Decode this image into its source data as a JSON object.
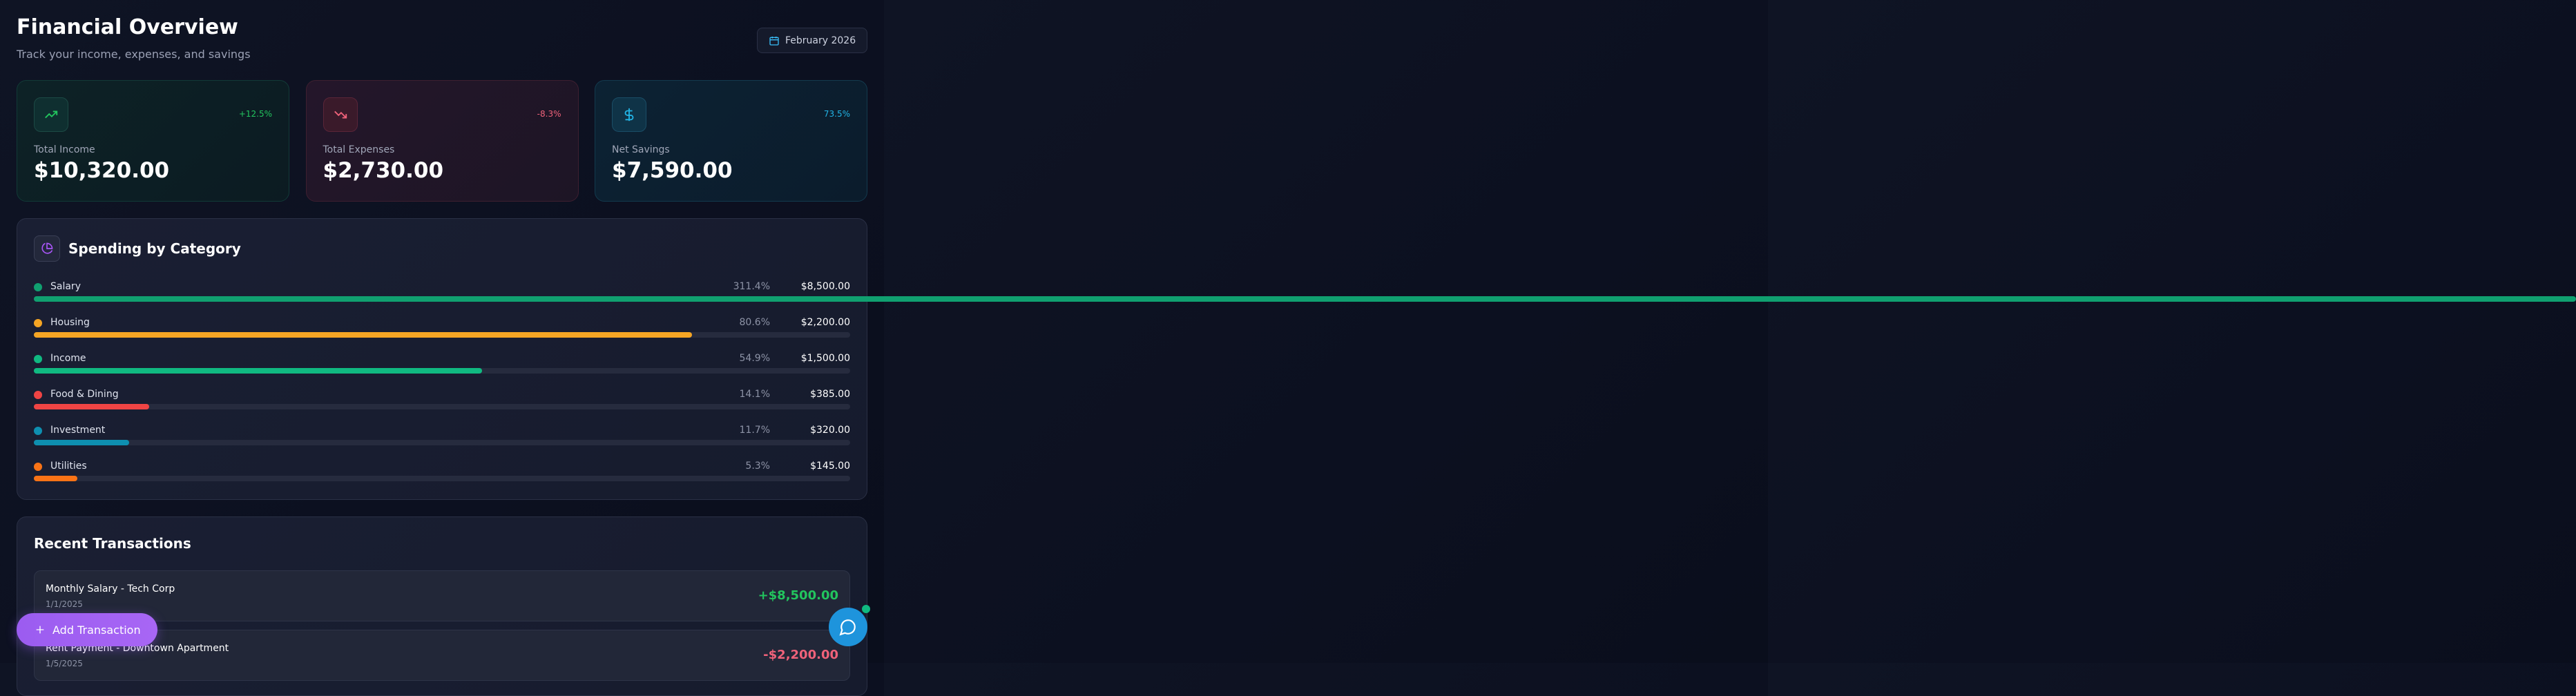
{
  "header": {
    "title": "Financial Overview",
    "subtitle": "Track your income, expenses, and savings",
    "date": "February 2026"
  },
  "cards": [
    {
      "label": "Total Income",
      "value": "$10,320.00",
      "change": "+12.5%",
      "kind": "income"
    },
    {
      "label": "Total Expenses",
      "value": "$2,730.00",
      "change": "-8.3%",
      "kind": "expense"
    },
    {
      "label": "Net Savings",
      "value": "$7,590.00",
      "change": "73.5%",
      "kind": "savings"
    }
  ],
  "spending": {
    "title": "Spending by Category",
    "items": [
      {
        "name": "Salary",
        "percent": 311.4,
        "percent_label": "311.4%",
        "amount": "$8,500.00",
        "color": "#10a070"
      },
      {
        "name": "Housing",
        "percent": 80.6,
        "percent_label": "80.6%",
        "amount": "$2,200.00",
        "color": "#f5a524"
      },
      {
        "name": "Income",
        "percent": 54.9,
        "percent_label": "54.9%",
        "amount": "$1,500.00",
        "color": "#10b981"
      },
      {
        "name": "Food & Dining",
        "percent": 14.1,
        "percent_label": "14.1%",
        "amount": "$385.00",
        "color": "#ef4444"
      },
      {
        "name": "Investment",
        "percent": 11.7,
        "percent_label": "11.7%",
        "amount": "$320.00",
        "color": "#0e8fb0"
      },
      {
        "name": "Utilities",
        "percent": 5.3,
        "percent_label": "5.3%",
        "amount": "$145.00",
        "color": "#f97316"
      }
    ]
  },
  "transactions": {
    "title": "Recent Transactions",
    "items": [
      {
        "description": "Monthly Salary - Tech Corp",
        "date": "1/1/2025",
        "amount": "+$8,500.00",
        "kind": "income"
      },
      {
        "description": "Rent Payment - Downtown Apartment",
        "date": "1/5/2025",
        "amount": "-$2,200.00",
        "kind": "expense"
      }
    ]
  },
  "actions": {
    "add": "Add Transaction"
  }
}
